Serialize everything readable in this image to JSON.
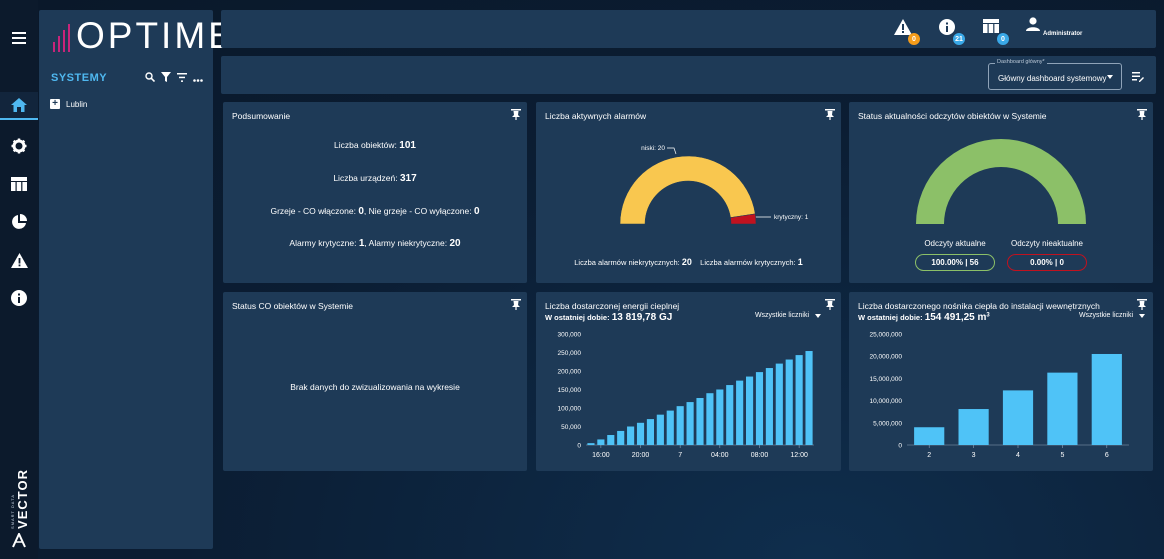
{
  "app": {
    "logo_text": "OPTIMER",
    "vendor_text": "VECTOR",
    "vendor_sub": "SMART DATA"
  },
  "sidebar": {
    "title": "SYSTEMY",
    "tree": [
      {
        "label": "Lublin"
      }
    ]
  },
  "leftnav": [
    {
      "name": "home-icon",
      "active": true
    },
    {
      "name": "gear-icon",
      "active": false
    },
    {
      "name": "table-icon",
      "active": false
    },
    {
      "name": "pie-chart-icon",
      "active": false
    },
    {
      "name": "warning-icon",
      "active": false
    },
    {
      "name": "info-icon",
      "active": false
    }
  ],
  "topbar": {
    "alerts_count": "0",
    "info_count": "21",
    "tasks_count": "0",
    "user_label": "Administrator",
    "colors": {
      "alert_badge": "#f59c1a",
      "info_badge": "#3aa9e8",
      "tasks_badge": "#3aa9e8"
    }
  },
  "dashboard_select": {
    "label": "Dashboard główny*",
    "value": "Główny dashboard systemowy"
  },
  "cards": {
    "summary": {
      "title": "Podsumowanie",
      "objects_label": "Liczba obiektów:",
      "objects_value": "101",
      "devices_label": "Liczba urządzeń:",
      "devices_value": "317",
      "heating_on_label": "Grzeje - CO włączone:",
      "heating_on_value": "0",
      "heating_off_label": ", Nie grzeje - CO wyłączone:",
      "heating_off_value": "0",
      "critical_label": "Alarmy krytyczne:",
      "critical_value": "1",
      "noncritical_label": ", Alarmy niekrytyczne:",
      "noncritical_value": "20"
    },
    "alarms": {
      "title": "Liczba aktywnych alarmów",
      "low_label": "niski: 20",
      "critical_label": "krytyczny: 1",
      "noncritical_text": "Liczba alarmów niekrytycznych:",
      "noncritical_value": "20",
      "critical_text": "Liczba alarmów krytycznych:",
      "critical_value": "1",
      "chart_data": {
        "type": "gauge",
        "series": [
          {
            "name": "niski",
            "value": 20,
            "color": "#f9c74f"
          },
          {
            "name": "krytyczny",
            "value": 1,
            "color": "#c1121f"
          }
        ]
      }
    },
    "readings": {
      "title": "Status aktualności odczytów obiektów w Systemie",
      "current_label": "Odczyty aktualne",
      "current_value": "100.00% | 56",
      "outdated_label": "Odczyty nieaktualne",
      "outdated_value": "0.00% | 0",
      "colors": {
        "current": "#8cc068",
        "outdated": "#c1121f"
      },
      "chart_data": {
        "type": "gauge",
        "series": [
          {
            "name": "aktualne",
            "value": 56
          },
          {
            "name": "nieaktualne",
            "value": 0
          }
        ]
      }
    },
    "co_status": {
      "title": "Status CO obiektów w Systemie",
      "empty_text": "Brak danych do zwizualizowania na wykresie"
    },
    "energy": {
      "title": "Liczba dostarczonej energii cieplnej",
      "period_label": "W ostatniej dobie:",
      "period_value": "13 819,78 GJ",
      "filter_label": "Wszystkie liczniki",
      "chart_data": {
        "type": "bar",
        "ylim": [
          0,
          300000
        ],
        "yticks": [
          "0",
          "50,000",
          "100,000",
          "150,000",
          "200,000",
          "250,000",
          "300,000"
        ],
        "xticks": [
          {
            "label": "16:00",
            "index": 1
          },
          {
            "label": "20:00",
            "index": 5
          },
          {
            "label": "7",
            "index": 9
          },
          {
            "label": "04:00",
            "index": 13
          },
          {
            "label": "08:00",
            "index": 17
          },
          {
            "label": "12:00",
            "index": 21
          }
        ],
        "values": [
          5000,
          15000,
          27000,
          38000,
          50000,
          60000,
          70000,
          82000,
          93000,
          105000,
          116000,
          127000,
          140000,
          150000,
          162000,
          174000,
          185000,
          197000,
          208000,
          220000,
          231000,
          243000,
          254000
        ],
        "bar_color": "#4fc3f7"
      }
    },
    "medium": {
      "title": "Liczba dostarczonego nośnika ciepła do instalacji wewnętrznych",
      "period_label": "W ostatniej dobie:",
      "period_value": "154 491,25 m",
      "period_unit_sup": "3",
      "filter_label": "Wszystkie liczniki",
      "chart_data": {
        "type": "bar",
        "categories": [
          "2",
          "3",
          "4",
          "5",
          "6"
        ],
        "values": [
          4000000,
          8100000,
          12300000,
          16300000,
          20500000
        ],
        "ylim": [
          0,
          25000000
        ],
        "yticks": [
          "0",
          "5,000,000",
          "10,000,000",
          "15,000,000",
          "20,000,000",
          "25,000,000"
        ],
        "bar_color": "#4fc3f7"
      }
    }
  }
}
